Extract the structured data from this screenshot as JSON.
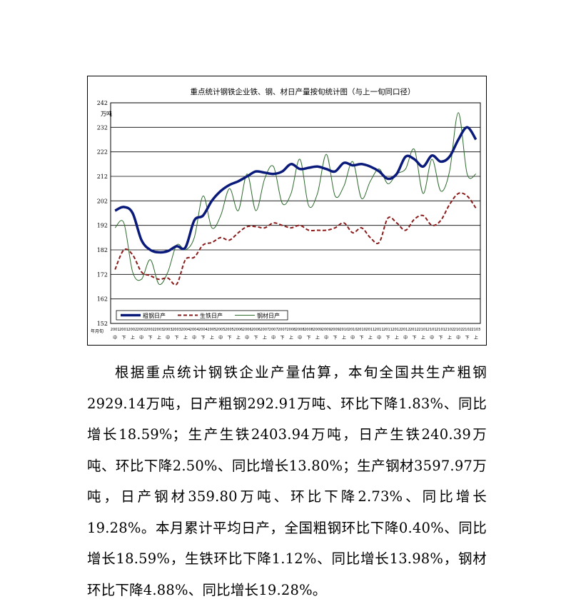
{
  "chart_data": {
    "type": "line",
    "title": "重点统计钢铁企业铁、钢、材日产量按旬统计图（与上一旬同口径）",
    "yunit": "万吨",
    "xunit": "年月旬",
    "ylim": [
      152,
      242
    ],
    "yticks": [
      152,
      162,
      172,
      182,
      192,
      202,
      212,
      222,
      232,
      242
    ],
    "grid": true,
    "legend_position": "bottom-left",
    "x_label_rows": [
      [
        "2001",
        "2001",
        "2002",
        "2002",
        "2002",
        "2003",
        "2003",
        "2003",
        "2004",
        "2004",
        "2004",
        "2005",
        "2005",
        "2005",
        "2006",
        "2006",
        "2006",
        "2007",
        "2007",
        "2007",
        "2008",
        "2008",
        "2008",
        "2009",
        "2009",
        "2009",
        "2010",
        "2010",
        "2010",
        "2011",
        "2011",
        "2011",
        "2012",
        "2012",
        "2012",
        "2101",
        "2101",
        "2101",
        "2102",
        "2102",
        "2102",
        "2103"
      ],
      [
        "中",
        "下",
        "上",
        "中",
        "下",
        "上",
        "中",
        "下",
        "上",
        "中",
        "下",
        "上",
        "中",
        "下",
        "上",
        "中",
        "下",
        "上",
        "中",
        "下",
        "上",
        "中",
        "下",
        "上",
        "中",
        "下",
        "上",
        "中",
        "下",
        "上",
        "中",
        "下",
        "上",
        "中",
        "下",
        "上",
        "中",
        "下",
        "上",
        "中",
        "下",
        "上"
      ]
    ],
    "series": [
      {
        "name": "粗钢日产",
        "color": "#0a1a7a",
        "style": "solid-thick",
        "values": [
          198,
          199.5,
          197,
          186,
          182,
          181,
          181.5,
          183.5,
          183,
          194,
          196,
          202,
          206,
          208.5,
          210,
          212,
          214,
          213.5,
          213,
          214,
          217,
          215,
          215.5,
          216,
          215,
          214,
          217.5,
          216.5,
          217,
          216,
          214,
          211,
          213,
          220,
          219,
          216,
          220.5,
          218,
          220,
          227,
          232,
          227
        ]
      },
      {
        "name": "生铁日产",
        "color": "#8b1a1a",
        "style": "dashed",
        "values": [
          174,
          182,
          180,
          173,
          171.5,
          170,
          170.5,
          168,
          178,
          179,
          184,
          185,
          187,
          186,
          189,
          191.5,
          191.5,
          191,
          193,
          192,
          191,
          192,
          190,
          190,
          190,
          191,
          193,
          189,
          191,
          187,
          185,
          195,
          193,
          190,
          194.5,
          196,
          192,
          194,
          200.5,
          205,
          204,
          199
        ]
      },
      {
        "name": "钢材日产",
        "color": "#2e6b2e",
        "style": "solid-thin",
        "values": [
          191,
          193,
          173,
          170,
          178,
          168,
          173,
          184,
          182,
          187,
          204,
          191,
          196,
          207,
          198,
          213,
          198,
          211,
          216,
          201,
          205,
          219,
          200,
          205,
          221,
          204,
          208,
          218,
          203,
          210,
          215,
          209,
          213,
          215,
          223,
          205,
          219,
          206,
          214,
          238,
          213,
          213
        ]
      }
    ]
  },
  "text": {
    "paragraph": "根据重点统计钢铁企业产量估算，本旬全国共生产粗钢2929.14万吨，日产粗钢292.91万吨、环比下降1.83%、同比增长18.59%；生产生铁2403.94万吨，日产生铁240.39万吨、环比下降2.50%、同比增长13.80%；生产钢材3597.97万吨，日产钢材359.80万吨、环比下降2.73%、同比增长19.28%。本月累计平均日产，全国粗钢环比下降0.40%、同比增长18.59%，生铁环比下降1.12%、同比增长13.98%，钢材环比下降4.88%、同比增长19.28%。"
  }
}
